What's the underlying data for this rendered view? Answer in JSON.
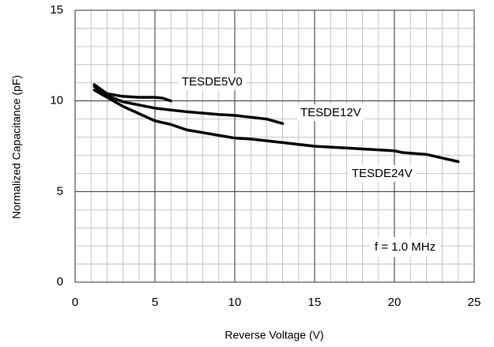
{
  "chart_data": {
    "type": "line",
    "xlabel": "Reverse Voltage (V)",
    "ylabel": "Normalized Capacitance (pF)",
    "annotation": "f = 1.0 MHz",
    "xlim": [
      0,
      25
    ],
    "xticks": [
      0,
      5,
      10,
      15,
      20,
      25
    ],
    "ylim": [
      0,
      15
    ],
    "yticks": [
      0,
      5,
      10,
      15
    ],
    "xminorticks": [
      1,
      2,
      3,
      4,
      6,
      7,
      8,
      9,
      11,
      12,
      13,
      14,
      16,
      17,
      18,
      19,
      21,
      22,
      23,
      24
    ],
    "yminorticks": [
      1,
      2,
      3,
      4,
      6,
      7,
      8,
      9,
      11,
      12,
      13,
      14
    ],
    "grid": true,
    "series": [
      {
        "name": "TESDE5V0",
        "color": "#000000",
        "x": [
          1.2,
          2,
          3,
          4,
          5,
          5.5,
          6
        ],
        "values": [
          10.9,
          10.4,
          10.25,
          10.2,
          10.2,
          10.15,
          10.0
        ]
      },
      {
        "name": "TESDE12V",
        "color": "#000000",
        "x": [
          1.2,
          2,
          3,
          5,
          7,
          9,
          10,
          11,
          12,
          13
        ],
        "values": [
          10.8,
          10.3,
          9.95,
          9.6,
          9.4,
          9.25,
          9.2,
          9.1,
          9.0,
          8.75
        ]
      },
      {
        "name": "TESDE24V",
        "color": "#000000",
        "x": [
          1.2,
          2,
          3,
          4,
          5,
          6,
          7,
          8,
          9,
          10,
          11,
          12,
          13,
          14,
          15,
          17,
          19,
          20,
          20.5,
          22,
          23,
          24
        ],
        "values": [
          10.6,
          10.2,
          9.7,
          9.3,
          8.9,
          8.7,
          8.4,
          8.25,
          8.1,
          7.95,
          7.9,
          7.8,
          7.7,
          7.6,
          7.5,
          7.4,
          7.3,
          7.25,
          7.15,
          7.05,
          6.85,
          6.65
        ]
      }
    ]
  }
}
